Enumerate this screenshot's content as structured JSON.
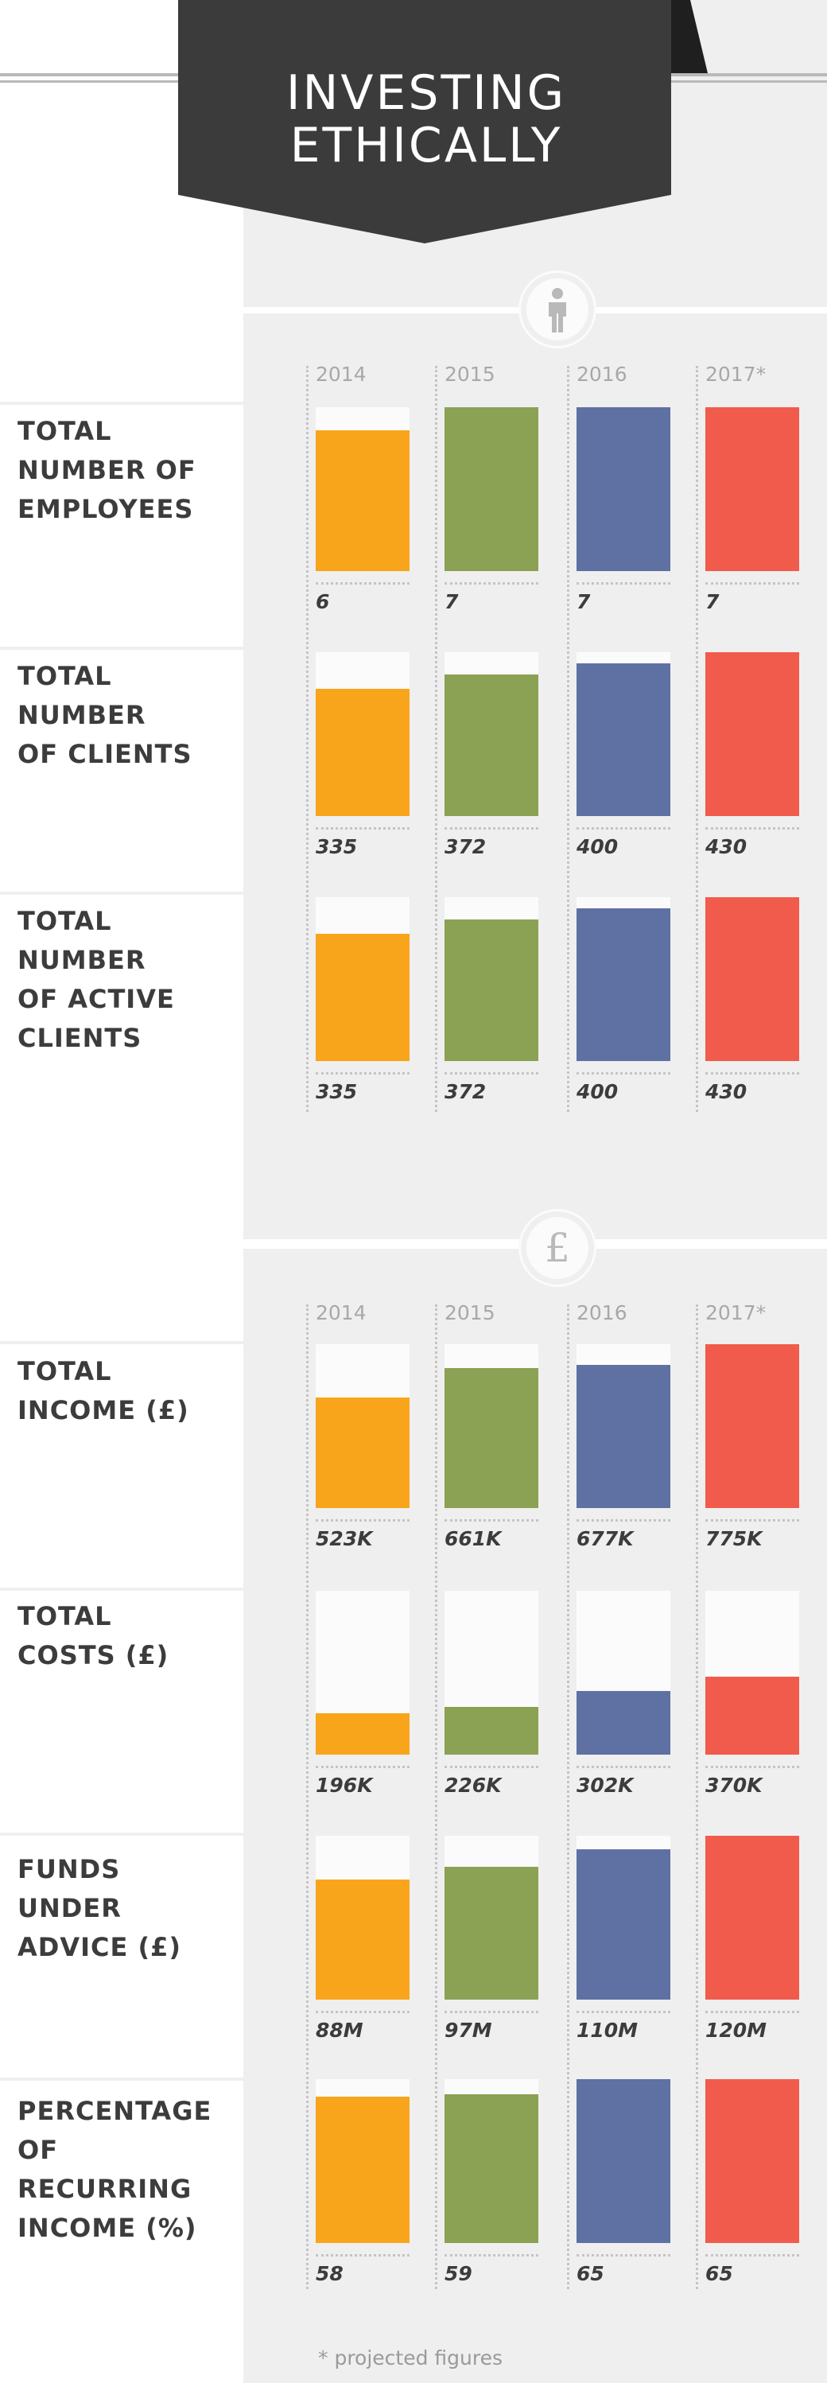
{
  "header": {
    "title_lines": [
      "INVESTING",
      "ETHICALLY"
    ]
  },
  "colors": {
    "2014": "#f8a51b",
    "2015": "#8ba153",
    "2016": "#5f70a3",
    "2017*": "#f15b4b",
    "banner": "#3b3b3b",
    "panel": "#efefef",
    "track": "#fbfbfb"
  },
  "sections": [
    {
      "icon": "person-icon",
      "years": [
        "2014",
        "2015",
        "2016",
        "2017*"
      ]
    },
    {
      "icon": "pound-icon",
      "years": [
        "2014",
        "2015",
        "2016",
        "2017*"
      ]
    }
  ],
  "chart_data": [
    {
      "type": "bar",
      "title_lines": [
        "TOTAL",
        "NUMBER OF",
        "EMPLOYEES"
      ],
      "categories": [
        "2014",
        "2015",
        "2016",
        "2017*"
      ],
      "values": [
        6,
        7,
        7,
        7
      ],
      "labels": [
        "6",
        "7",
        "7",
        "7"
      ],
      "ylim": [
        0,
        7
      ]
    },
    {
      "type": "bar",
      "title_lines": [
        "TOTAL",
        "NUMBER",
        "OF CLIENTS"
      ],
      "categories": [
        "2014",
        "2015",
        "2016",
        "2017*"
      ],
      "values": [
        335,
        372,
        400,
        430
      ],
      "labels": [
        "335",
        "372",
        "400",
        "430"
      ],
      "ylim": [
        0,
        430
      ]
    },
    {
      "type": "bar",
      "title_lines": [
        "TOTAL",
        "NUMBER",
        "OF ACTIVE",
        "CLIENTS"
      ],
      "categories": [
        "2014",
        "2015",
        "2016",
        "2017*"
      ],
      "values": [
        335,
        372,
        400,
        430
      ],
      "labels": [
        "335",
        "372",
        "400",
        "430"
      ],
      "ylim": [
        0,
        430
      ]
    },
    {
      "type": "bar",
      "title_lines": [
        "TOTAL",
        "INCOME (£)"
      ],
      "categories": [
        "2014",
        "2015",
        "2016",
        "2017*"
      ],
      "values": [
        523,
        661,
        677,
        775
      ],
      "labels": [
        "523K",
        "661K",
        "677K",
        "775K"
      ],
      "ylim": [
        0,
        775
      ]
    },
    {
      "type": "bar",
      "title_lines": [
        "TOTAL",
        "COSTS (£)"
      ],
      "categories": [
        "2014",
        "2015",
        "2016",
        "2017*"
      ],
      "values": [
        196,
        226,
        302,
        370
      ],
      "labels": [
        "196K",
        "226K",
        "302K",
        "370K"
      ],
      "ylim": [
        0,
        775
      ]
    },
    {
      "type": "bar",
      "title_lines": [
        "FUNDS UNDER",
        "ADVICE (£)"
      ],
      "categories": [
        "2014",
        "2015",
        "2016",
        "2017*"
      ],
      "values": [
        88,
        97,
        110,
        120
      ],
      "labels": [
        "88M",
        "97M",
        "110M",
        "120M"
      ],
      "ylim": [
        0,
        120
      ]
    },
    {
      "type": "bar",
      "title_lines": [
        "PERCENTAGE",
        "OF RECURRING",
        "INCOME (%)"
      ],
      "categories": [
        "2014",
        "2015",
        "2016",
        "2017*"
      ],
      "values": [
        58,
        59,
        65,
        65
      ],
      "labels": [
        "58",
        "59",
        "65",
        "65"
      ],
      "ylim": [
        0,
        65
      ]
    }
  ],
  "footnote": "* projected figures"
}
